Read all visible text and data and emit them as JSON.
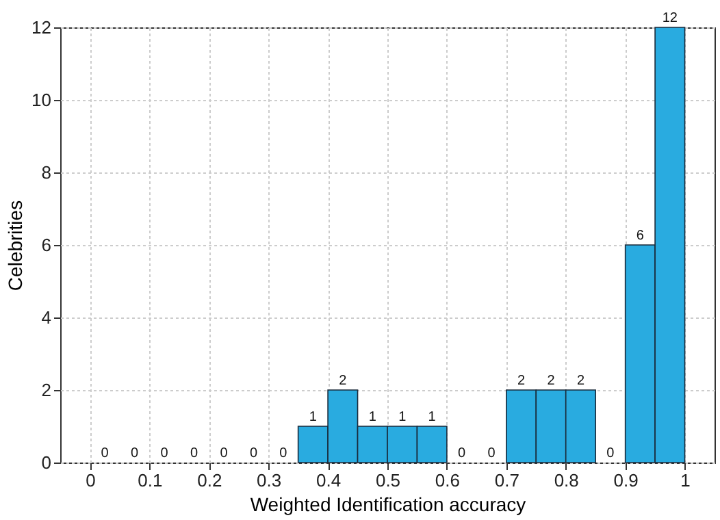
{
  "chart_data": {
    "type": "histogram",
    "bins": [
      0,
      0.05,
      0.1,
      0.15,
      0.2,
      0.25,
      0.3,
      0.35,
      0.4,
      0.45,
      0.5,
      0.55,
      0.6,
      0.65,
      0.7,
      0.75,
      0.8,
      0.85,
      0.9,
      0.95,
      1
    ],
    "values": [
      0,
      0,
      0,
      0,
      0,
      0,
      0,
      1,
      2,
      1,
      1,
      1,
      0,
      0,
      2,
      2,
      2,
      0,
      6,
      12
    ],
    "color": "#29abe0",
    "xlabel": "Weighted Identification accuracy",
    "ylabel": "Celebrities",
    "xlim": [
      -0.05,
      1.05
    ],
    "xticks": [
      0,
      0.1,
      0.2,
      0.3,
      0.4,
      0.5,
      0.6,
      0.7,
      0.8,
      0.9,
      1
    ],
    "ylim": [
      0,
      12
    ],
    "yticks": [
      0,
      2,
      4,
      6,
      8,
      10,
      12
    ],
    "grid": true,
    "data_labels": true
  }
}
